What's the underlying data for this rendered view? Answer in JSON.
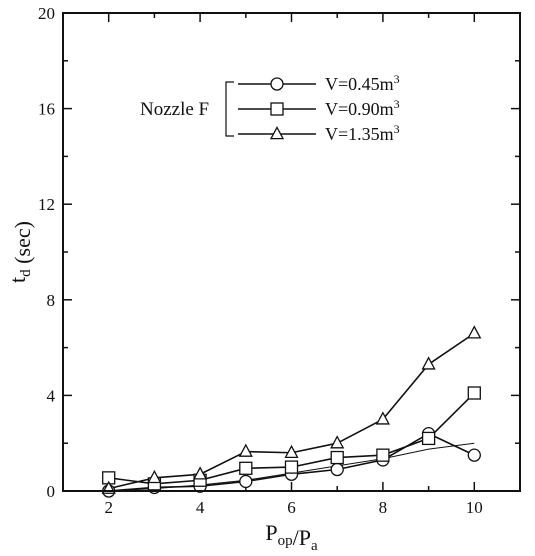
{
  "chart_data": {
    "type": "line",
    "xlabel": "P_op/P_a",
    "ylabel": "t_d (sec)",
    "xlim": [
      1,
      11
    ],
    "ylim": [
      0,
      20
    ],
    "xticks": [
      2,
      4,
      6,
      8,
      10
    ],
    "yticks": [
      0,
      4,
      8,
      12,
      16,
      20
    ],
    "x_tick_labels": [
      "2",
      "4",
      "6",
      "8",
      "10"
    ],
    "y_tick_labels": [
      "0",
      "4",
      "8",
      "12",
      "16",
      "20"
    ],
    "grid": false,
    "legend": {
      "placement": "top-center",
      "group_label": "Nozzle F",
      "entries": [
        {
          "text": "V=0.45m",
          "sup": "3"
        },
        {
          "text": "V=0.90m",
          "sup": "3"
        },
        {
          "text": "V=1.35m",
          "sup": "3"
        }
      ]
    },
    "series": [
      {
        "name": "V=0.45m3",
        "marker": "circle",
        "x": [
          2,
          3,
          4,
          5,
          6,
          7,
          8,
          9,
          10
        ],
        "y": [
          0.0,
          0.15,
          0.2,
          0.4,
          0.7,
          0.9,
          1.3,
          2.4,
          1.5
        ]
      },
      {
        "name": "V=0.90m3",
        "marker": "square",
        "x": [
          2,
          3,
          4,
          5,
          6,
          7,
          8,
          9,
          10
        ],
        "y": [
          0.55,
          0.3,
          0.45,
          0.95,
          1.0,
          1.4,
          1.5,
          2.2,
          4.1
        ]
      },
      {
        "name": "V=1.35m3",
        "marker": "triangle",
        "x": [
          2,
          3,
          4,
          5,
          6,
          7,
          8,
          9,
          10
        ],
        "y": [
          0.1,
          0.55,
          0.7,
          1.65,
          1.6,
          2.0,
          3.0,
          5.3,
          6.6
        ]
      },
      {
        "marker": "none",
        "x": [
          2,
          3,
          4,
          5,
          6,
          7,
          8,
          9,
          10
        ],
        "y": [
          0.0,
          0.1,
          0.25,
          0.45,
          0.75,
          1.05,
          1.35,
          1.75,
          2.0
        ]
      }
    ]
  }
}
